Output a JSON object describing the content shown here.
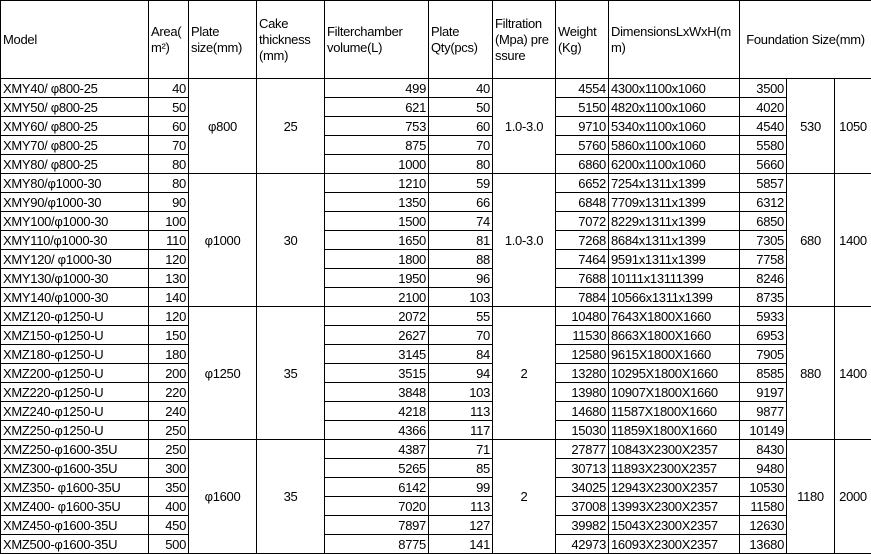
{
  "headers": {
    "model": "Model",
    "area": "Area( m²)",
    "plate_size": "Plate size(mm)",
    "cake_thickness": "Cake thickness (mm)",
    "chamber_volume": "Filterchamber volume(L)",
    "plate_qty": "Plate Qty(pcs)",
    "filtration_pressure": "Filtration(Mpa) pressure",
    "weight": "Weight (Kg)",
    "dimensions": "DimensionsLxWxH(mm)",
    "foundation": "Foundation Size(mm)"
  },
  "groups": [
    {
      "plate_size": "φ800",
      "cake_thickness": "25",
      "pressure": "1.0-3.0",
      "foundation_w": "530",
      "foundation_h": "1050",
      "rows": [
        {
          "model": "XMY40/ φ800-25",
          "area": "40",
          "volume": "499",
          "qty": "40",
          "weight": "4554",
          "dims": "4300x1100x1060",
          "foundation_l": "3500"
        },
        {
          "model": "XMY50/ φ800-25",
          "area": "50",
          "volume": "621",
          "qty": "50",
          "weight": "5150",
          "dims": "4820x1100x1060",
          "foundation_l": "4020"
        },
        {
          "model": "XMY60/ φ800-25",
          "area": "60",
          "volume": "753",
          "qty": "60",
          "weight": "9710",
          "dims": "5340x1100x1060",
          "foundation_l": "4540"
        },
        {
          "model": "XMY70/ φ800-25",
          "area": "70",
          "volume": "875",
          "qty": "70",
          "weight": "5760",
          "dims": "5860x1100x1060",
          "foundation_l": "5580"
        },
        {
          "model": "XMY80/ φ800-25",
          "area": "80",
          "volume": "1000",
          "qty": "80",
          "weight": "6860",
          "dims": "6200x1100x1060",
          "foundation_l": "5660"
        }
      ]
    },
    {
      "plate_size": "φ1000",
      "cake_thickness": "30",
      "pressure": "1.0-3.0",
      "foundation_w": "680",
      "foundation_h": "1400",
      "rows": [
        {
          "model": "XMY80/φ1000-30",
          "area": "80",
          "volume": "1210",
          "qty": "59",
          "weight": "6652",
          "dims": "7254x1311x1399",
          "foundation_l": "5857"
        },
        {
          "model": "XMY90/φ1000-30",
          "area": "90",
          "volume": "1350",
          "qty": "66",
          "weight": "6848",
          "dims": "7709x1311x1399",
          "foundation_l": "6312"
        },
        {
          "model": "XMY100/φ1000-30",
          "area": "100",
          "volume": "1500",
          "qty": "74",
          "weight": "7072",
          "dims": "8229x1311x1399",
          "foundation_l": "6850"
        },
        {
          "model": "XMY110/φ1000-30",
          "area": "110",
          "volume": "1650",
          "qty": "81",
          "weight": "7268",
          "dims": "8684x1311x1399",
          "foundation_l": "7305"
        },
        {
          "model": "XMY120/ φ1000-30",
          "area": "120",
          "volume": "1800",
          "qty": "88",
          "weight": "7464",
          "dims": "9591x1311x1399",
          "foundation_l": "7758"
        },
        {
          "model": "XMY130/φ1000-30",
          "area": "130",
          "volume": "1950",
          "qty": "96",
          "weight": "7688",
          "dims": "10111x13111399",
          "foundation_l": "8246"
        },
        {
          "model": "XMY140/φ1000-30",
          "area": "140",
          "volume": "2100",
          "qty": "103",
          "weight": "7884",
          "dims": "10566x1311x1399",
          "foundation_l": "8735"
        }
      ]
    },
    {
      "plate_size": "φ1250",
      "cake_thickness": "35",
      "pressure": "2",
      "foundation_w": "880",
      "foundation_h": "1400",
      "rows": [
        {
          "model": "XMZ120-φ1250-U",
          "area": "120",
          "volume": "2072",
          "qty": "55",
          "weight": "10480",
          "dims": "7643X1800X1660",
          "foundation_l": "5933"
        },
        {
          "model": "XMZ150-φ1250-U",
          "area": "150",
          "volume": "2627",
          "qty": "70",
          "weight": "11530",
          "dims": "8663X1800X1660",
          "foundation_l": "6953"
        },
        {
          "model": "XMZ180-φ1250-U",
          "area": "180",
          "volume": "3145",
          "qty": "84",
          "weight": "12580",
          "dims": "9615X1800X1660",
          "foundation_l": "7905"
        },
        {
          "model": "XMZ200-φ1250-U",
          "area": "200",
          "volume": "3515",
          "qty": "94",
          "weight": "13280",
          "dims": "10295X1800X1660",
          "foundation_l": "8585"
        },
        {
          "model": "XMZ220-φ1250-U",
          "area": "220",
          "volume": "3848",
          "qty": "103",
          "weight": "13980",
          "dims": "10907X1800X1660",
          "foundation_l": "9197"
        },
        {
          "model": "XMZ240-φ1250-U",
          "area": "240",
          "volume": "4218",
          "qty": "113",
          "weight": "14680",
          "dims": "11587X1800X1660",
          "foundation_l": "9877"
        },
        {
          "model": "XMZ250-φ1250-U",
          "area": "250",
          "volume": "4366",
          "qty": "117",
          "weight": "15030",
          "dims": "11859X1800X1660",
          "foundation_l": "10149"
        }
      ]
    },
    {
      "plate_size": "φ1600",
      "cake_thickness": "35",
      "pressure": "2",
      "foundation_w": "1180",
      "foundation_h": "2000",
      "rows": [
        {
          "model": "XMZ250-φ1600-35U",
          "area": "250",
          "volume": "4387",
          "qty": "71",
          "weight": "27877",
          "dims": "10843X2300X2357",
          "foundation_l": "8430"
        },
        {
          "model": "XMZ300-φ1600-35U",
          "area": "300",
          "volume": "5265",
          "qty": "85",
          "weight": "30713",
          "dims": "11893X2300X2357",
          "foundation_l": "9480"
        },
        {
          "model": "XMZ350- φ1600-35U",
          "area": "350",
          "volume": "6142",
          "qty": "99",
          "weight": "34025",
          "dims": "12943X2300X2357",
          "foundation_l": "10530"
        },
        {
          "model": "XMZ400- φ1600-35U",
          "area": "400",
          "volume": "7020",
          "qty": "113",
          "weight": "37008",
          "dims": "13993X2300X2357",
          "foundation_l": "11580"
        },
        {
          "model": "XMZ450-φ1600-35U",
          "area": "450",
          "volume": "7897",
          "qty": "127",
          "weight": "39982",
          "dims": "15043X2300X2357",
          "foundation_l": "12630"
        },
        {
          "model": "XMZ500-φ1600-35U",
          "area": "500",
          "volume": "8775",
          "qty": "141",
          "weight": "42973",
          "dims": "16093X2300X2357",
          "foundation_l": "13680"
        }
      ]
    }
  ]
}
